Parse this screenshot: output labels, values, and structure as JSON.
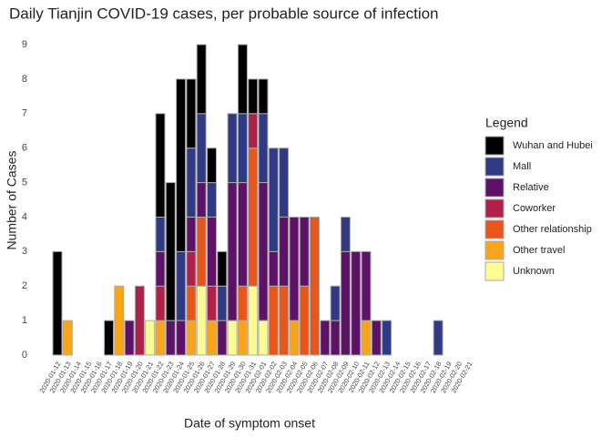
{
  "chart_data": {
    "type": "stacked_bar",
    "title": "Daily Tianjin COVID-19 cases, per probable source of infection",
    "x_label": "Date of symptom onset",
    "y_label": "Number of Cases",
    "legend_title": "Legend",
    "categories": [
      "2020-01-12",
      "2020-01-13",
      "2020-01-14",
      "2020-01-15",
      "2020-01-16",
      "2020-01-17",
      "2020-01-18",
      "2020-01-19",
      "2020-01-20",
      "2020-01-21",
      "2020-01-22",
      "2020-01-23",
      "2020-01-24",
      "2020-01-25",
      "2020-01-26",
      "2020-01-27",
      "2020-01-28",
      "2020-01-29",
      "2020-01-30",
      "2020-01-31",
      "2020-02-01",
      "2020-02-02",
      "2020-02-03",
      "2020-02-04",
      "2020-02-05",
      "2020-02-06",
      "2020-02-07",
      "2020-02-08",
      "2020-02-09",
      "2020-02-10",
      "2020-02-11",
      "2020-02-12",
      "2020-02-13",
      "2020-02-14",
      "2020-02-15",
      "2020-02-16",
      "2020-02-17",
      "2020-02-18",
      "2020-02-19",
      "2020-02-20",
      "2020-02-21"
    ],
    "series": [
      {
        "name": "Wuhan and Hubei",
        "color": "#000000",
        "values": [
          3,
          0,
          0,
          0,
          0,
          1,
          0,
          0,
          0,
          0,
          3,
          4,
          5,
          2,
          2,
          1,
          1,
          0,
          2,
          1,
          1,
          0,
          0,
          0,
          0,
          0,
          0,
          0,
          0,
          0,
          0,
          0,
          0,
          0,
          0,
          0,
          0,
          0,
          0,
          0,
          0
        ]
      },
      {
        "name": "Mall",
        "color": "#303a84",
        "values": [
          0,
          0,
          0,
          0,
          0,
          0,
          0,
          0,
          0,
          0,
          1,
          0,
          2,
          2,
          2,
          1,
          1,
          2,
          2,
          0,
          2,
          3,
          2,
          0,
          0,
          0,
          0,
          1,
          1,
          0,
          0,
          0,
          1,
          0,
          0,
          0,
          0,
          1,
          0,
          0,
          0
        ]
      },
      {
        "name": "Relative",
        "color": "#5e1267",
        "values": [
          0,
          0,
          0,
          0,
          0,
          0,
          0,
          1,
          0,
          0,
          1,
          1,
          1,
          1,
          1,
          2,
          1,
          4,
          3,
          0,
          4,
          1,
          2,
          3,
          2,
          0,
          1,
          1,
          3,
          3,
          2,
          1,
          0,
          0,
          0,
          0,
          0,
          0,
          0,
          0,
          0
        ]
      },
      {
        "name": "Coworker",
        "color": "#b11f4b",
        "values": [
          0,
          0,
          0,
          0,
          0,
          0,
          0,
          0,
          2,
          0,
          1,
          0,
          0,
          1,
          0,
          1,
          0,
          0,
          0,
          1,
          0,
          0,
          0,
          0,
          0,
          0,
          0,
          0,
          0,
          0,
          0,
          0,
          0,
          0,
          0,
          0,
          0,
          0,
          0,
          0,
          0
        ]
      },
      {
        "name": "Other relationship",
        "color": "#e8571a",
        "values": [
          0,
          0,
          0,
          0,
          0,
          0,
          0,
          0,
          0,
          0,
          0,
          0,
          0,
          1,
          2,
          0,
          0,
          0,
          1,
          4,
          0,
          2,
          2,
          0,
          2,
          4,
          0,
          0,
          0,
          0,
          0,
          0,
          0,
          0,
          0,
          0,
          0,
          0,
          0,
          0,
          0
        ]
      },
      {
        "name": "Other travel",
        "color": "#f9a51b",
        "values": [
          0,
          1,
          0,
          0,
          0,
          0,
          2,
          0,
          0,
          0,
          1,
          0,
          0,
          1,
          0,
          1,
          0,
          0,
          1,
          0,
          0,
          0,
          0,
          1,
          0,
          0,
          0,
          0,
          0,
          0,
          1,
          0,
          0,
          0,
          0,
          0,
          0,
          0,
          0,
          0,
          0
        ]
      },
      {
        "name": "Unknown",
        "color": "#fcfc93",
        "values": [
          0,
          0,
          0,
          0,
          0,
          0,
          0,
          0,
          0,
          1,
          0,
          0,
          0,
          0,
          2,
          0,
          0,
          1,
          0,
          2,
          1,
          0,
          0,
          0,
          0,
          0,
          0,
          0,
          0,
          0,
          0,
          0,
          0,
          0,
          0,
          0,
          0,
          0,
          0,
          0,
          0
        ]
      }
    ],
    "ylim": [
      0,
      9
    ],
    "yticks": [
      0,
      1,
      2,
      3,
      4,
      5,
      6,
      7,
      8,
      9
    ],
    "grid": false
  }
}
